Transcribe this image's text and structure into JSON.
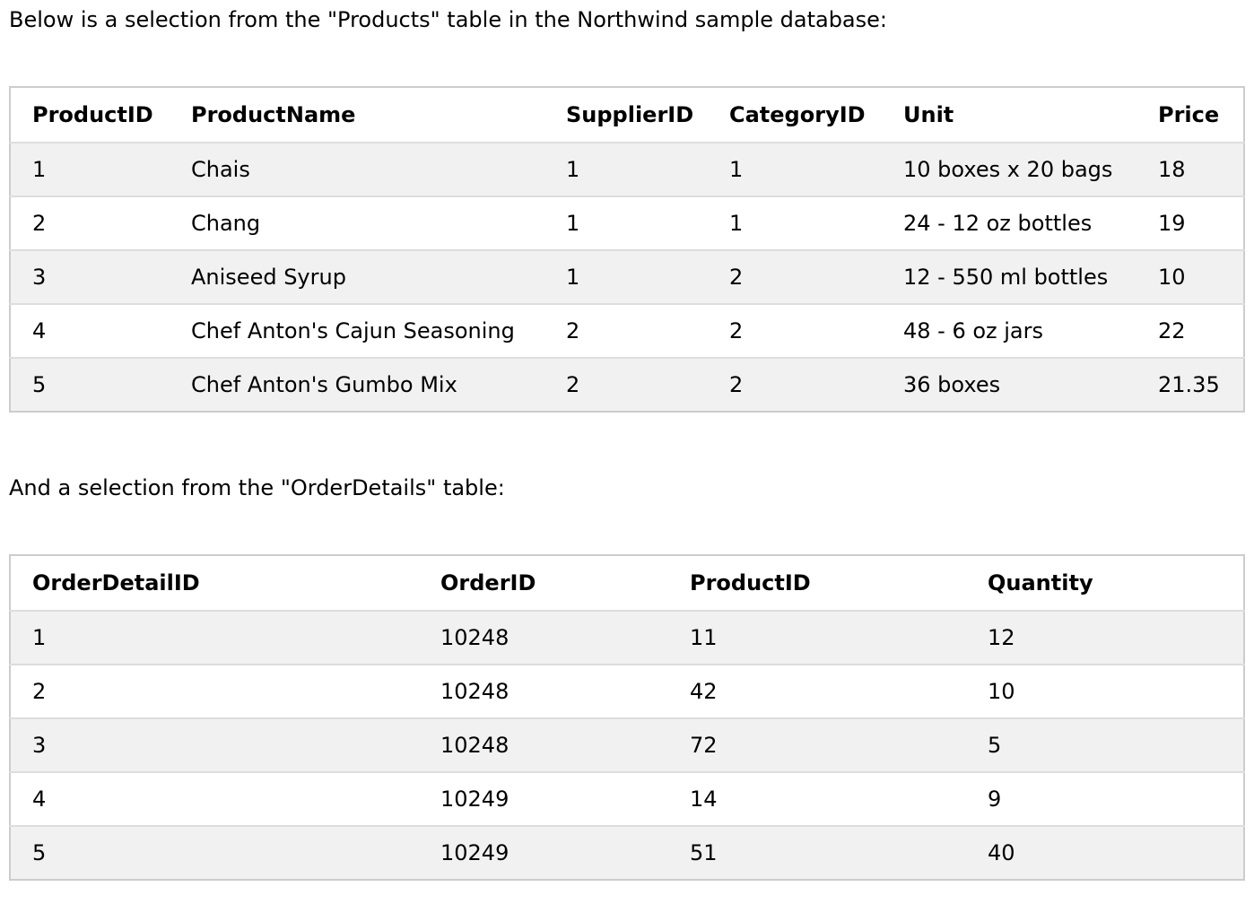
{
  "intro_products": "Below is a selection from the \"Products\" table in the Northwind sample database:",
  "intro_orderdetails": "And a selection from the \"OrderDetails\" table:",
  "products": {
    "headers": [
      "ProductID",
      "ProductName",
      "SupplierID",
      "CategoryID",
      "Unit",
      "Price"
    ],
    "rows": [
      [
        "1",
        "Chais",
        "1",
        "1",
        "10 boxes x 20 bags",
        "18"
      ],
      [
        "2",
        "Chang",
        "1",
        "1",
        "24 - 12 oz bottles",
        "19"
      ],
      [
        "3",
        "Aniseed Syrup",
        "1",
        "2",
        "12 - 550 ml bottles",
        "10"
      ],
      [
        "4",
        "Chef Anton's Cajun Seasoning",
        "2",
        "2",
        "48 - 6 oz jars",
        "22"
      ],
      [
        "5",
        "Chef Anton's Gumbo Mix",
        "2",
        "2",
        "36 boxes",
        "21.35"
      ]
    ]
  },
  "orderdetails": {
    "headers": [
      "OrderDetailID",
      "OrderID",
      "ProductID",
      "Quantity"
    ],
    "rows": [
      [
        "1",
        "10248",
        "11",
        "12"
      ],
      [
        "2",
        "10248",
        "42",
        "10"
      ],
      [
        "3",
        "10248",
        "72",
        "5"
      ],
      [
        "4",
        "10249",
        "14",
        "9"
      ],
      [
        "5",
        "10249",
        "51",
        "40"
      ]
    ]
  },
  "colors": {
    "border": "#cccccc",
    "row_divider": "#dddddd",
    "stripe": "#f1f1f1",
    "background": "#ffffff"
  }
}
